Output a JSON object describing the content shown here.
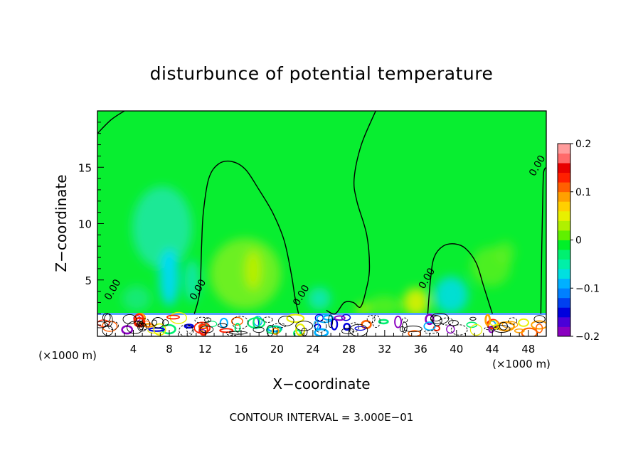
{
  "chart_data": {
    "type": "heatmap",
    "title": "disturbunce of potential temperature",
    "xlabel": "X−coordinate",
    "ylabel": "Z−coordinate",
    "x_unit_label_left": "(×1000 m)",
    "x_unit_label_right": "(×1000 m)",
    "footer": "CONTOUR INTERVAL = 3.000E−01",
    "xlim": [
      0,
      50
    ],
    "ylim": [
      0,
      20
    ],
    "x_ticks": [
      4,
      8,
      12,
      16,
      20,
      24,
      28,
      32,
      36,
      40,
      44,
      48
    ],
    "y_ticks": [
      5,
      10,
      15
    ],
    "contour_labels": [
      {
        "text": "0.00",
        "x": 2,
        "y": 4
      },
      {
        "text": "0.00",
        "x": 11.5,
        "y": 4
      },
      {
        "text": "0.00",
        "x": 23,
        "y": 3.5
      },
      {
        "text": "0.00",
        "x": 37,
        "y": 5
      },
      {
        "text": "0.00",
        "x": 49.3,
        "y": 15
      }
    ],
    "zero_contours": [
      {
        "points": [
          [
            0,
            18
          ],
          [
            1.5,
            19.2
          ],
          [
            3,
            20
          ]
        ]
      },
      {
        "points": [
          [
            10.8,
            2
          ],
          [
            11.4,
            4
          ],
          [
            11.6,
            8
          ],
          [
            11.8,
            11
          ],
          [
            12.4,
            14
          ],
          [
            13.5,
            15.3
          ],
          [
            15,
            15.5
          ],
          [
            16.5,
            14.8
          ],
          [
            18,
            13
          ],
          [
            19.5,
            11
          ],
          [
            20.8,
            8.5
          ],
          [
            21.6,
            5.5
          ],
          [
            22,
            3.5
          ],
          [
            22.4,
            2
          ]
        ]
      },
      {
        "points": [
          [
            25.5,
            2.3
          ],
          [
            26.5,
            2
          ],
          [
            27.5,
            3
          ],
          [
            28.5,
            3
          ],
          [
            29.3,
            2.6
          ],
          [
            29.9,
            4
          ],
          [
            30.3,
            6
          ],
          [
            30,
            9
          ],
          [
            28.9,
            12
          ],
          [
            28.6,
            14
          ],
          [
            29.4,
            17
          ],
          [
            31,
            20
          ]
        ]
      },
      {
        "points": [
          [
            36.8,
            2
          ],
          [
            37.1,
            5
          ],
          [
            37.5,
            7
          ],
          [
            38.5,
            8
          ],
          [
            39.8,
            8.2
          ],
          [
            41,
            7.8
          ],
          [
            42.2,
            6.5
          ],
          [
            43,
            4.5
          ],
          [
            43.6,
            3
          ],
          [
            44,
            2
          ]
        ]
      },
      {
        "points": [
          [
            49.4,
            2
          ],
          [
            49.5,
            8
          ],
          [
            49.6,
            12
          ],
          [
            49.7,
            14.5
          ],
          [
            50,
            15
          ]
        ]
      }
    ],
    "colorbar": {
      "min": -0.2,
      "max": 0.2,
      "tick_labels": [
        "0.2",
        "0.1",
        "0",
        "−0.1",
        "−0.2"
      ],
      "tick_values": [
        0.2,
        0.1,
        0,
        -0.1,
        -0.2
      ],
      "colors": [
        "#8a00c0",
        "#4a00d8",
        "#0000dd",
        "#0040f0",
        "#0080ff",
        "#00b0ff",
        "#00e0e0",
        "#00f0a8",
        "#00f070",
        "#00f028",
        "#60f000",
        "#b0f000",
        "#e8f000",
        "#ffd000",
        "#ffa000",
        "#ff6000",
        "#ff2000",
        "#e80000",
        "#ff6a6a",
        "#ff9c9c"
      ]
    },
    "colors": {
      "field_background": "#08ee30",
      "cool_anomaly": "#08eab6",
      "warm_anomaly": "#88f020",
      "contour": "#000000"
    }
  }
}
